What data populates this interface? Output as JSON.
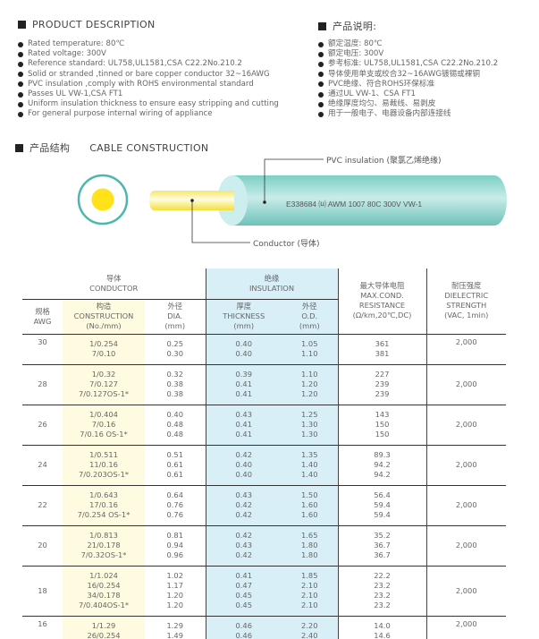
{
  "product_description": {
    "title": "PRODUCT DESCRIPTION",
    "items": [
      "Rated temperature: 80℃",
      "Rated voltage: 300V",
      "Reference standard: UL758,UL1581,CSA C22.2No.210.2",
      "Solid or stranded ,tinned or bare copper conductor 32~16AWG",
      "PVC insulation ,comply with ROHS environmental standard",
      "Passes UL VW-1,CSA FT1",
      "Uniform insulation thickness to ensure easy stripping and cutting",
      "For general purpose internal wiring of appliance"
    ]
  },
  "product_description_cn": {
    "title": "产品说明:",
    "items": [
      "额定温度: 80℃",
      "额定电压: 300V",
      "参考标准: UL758,UL1581,CSA C22.2No.210.2",
      "导体使用单支或绞合32~16AWG镀锡或裸铜",
      "PVC绝缘、符合ROHS环保标准",
      "通过UL VW-1、CSA FT1",
      "绝缘厚度均匀、易裁线、易剥皮",
      "用于一般电子、电器设备内部连接线"
    ]
  },
  "construction": {
    "title_cn": "产品结构",
    "title_en": "CABLE CONSTRUCTION",
    "pvc_label": "PVC insulation (聚氯乙烯绝缘)",
    "conductor_label": "Conductor (导体)",
    "cable_marking": "E338684 ⒰ AWM 1007 80C 300V VW-1",
    "colors": {
      "insulation": "#8fd3cc",
      "conductor": "#f5e23a"
    }
  },
  "table": {
    "group_conductor": [
      "导体",
      "CONDUCTOR"
    ],
    "group_insulation": [
      "绝缘",
      "INSULATION"
    ],
    "headers": {
      "awg": [
        "规格",
        "AWG"
      ],
      "construction": [
        "构造",
        "CONSTRUCTION",
        "(No./mm)"
      ],
      "dia": [
        "外径",
        "DIA.",
        "(mm)"
      ],
      "thickness": [
        "厚度",
        "THICKNESS",
        "(mm)"
      ],
      "od": [
        "外径",
        "O.D.",
        "(mm)"
      ],
      "resistance": [
        "最大导体电阻",
        "MAX.COND.",
        "RESISTANCE",
        "(Ω/km,20℃,DC)"
      ],
      "dielectric": [
        "耐压强度",
        "DIELECTRIC",
        "STRENGTH",
        "(VAC, 1min)"
      ]
    },
    "rows": [
      {
        "awg": "30",
        "construction": [
          "1/0.254",
          "7/0.10"
        ],
        "dia": [
          "0.25",
          "0.30"
        ],
        "thickness": [
          "0.40",
          "0.40"
        ],
        "od": [
          "1.05",
          "1.10"
        ],
        "resistance": [
          "361",
          "381"
        ],
        "dielectric": "2,000"
      },
      {
        "awg": "28",
        "construction": [
          "1/0.32",
          "7/0.127",
          "7/0.127OS-1*"
        ],
        "dia": [
          "0.32",
          "0.38",
          "0.38"
        ],
        "thickness": [
          "0.39",
          "0.41",
          "0.41"
        ],
        "od": [
          "1.10",
          "1.20",
          "1.20"
        ],
        "resistance": [
          "227",
          "239",
          "239"
        ],
        "dielectric": "2,000"
      },
      {
        "awg": "26",
        "construction": [
          "1/0.404",
          "7/0.16",
          "7/0.16 OS-1*"
        ],
        "dia": [
          "0.40",
          "0.48",
          "0.48"
        ],
        "thickness": [
          "0.43",
          "0.41",
          "0.41"
        ],
        "od": [
          "1.25",
          "1.30",
          "1.30"
        ],
        "resistance": [
          "143",
          "150",
          "150"
        ],
        "dielectric": "2,000"
      },
      {
        "awg": "24",
        "construction": [
          "1/0.511",
          "11/0.16",
          "7/0.203OS-1*"
        ],
        "dia": [
          "0.51",
          "0.61",
          "0.61"
        ],
        "thickness": [
          "0.42",
          "0.40",
          "0.40"
        ],
        "od": [
          "1.35",
          "1.40",
          "1.40"
        ],
        "resistance": [
          "89.3",
          "94.2",
          "94.2"
        ],
        "dielectric": "2,000"
      },
      {
        "awg": "22",
        "construction": [
          "1/0.643",
          "17/0.16",
          "7/0.254 OS-1*"
        ],
        "dia": [
          "0.64",
          "0.76",
          "0.76"
        ],
        "thickness": [
          "0.43",
          "0.42",
          "0.42"
        ],
        "od": [
          "1.50",
          "1.60",
          "1.60"
        ],
        "resistance": [
          "56.4",
          "59.4",
          "59.4"
        ],
        "dielectric": "2,000"
      },
      {
        "awg": "20",
        "construction": [
          "1/0.813",
          "21/0.178",
          "7/0.32OS-1*"
        ],
        "dia": [
          "0.81",
          "0.94",
          "0.96"
        ],
        "thickness": [
          "0.42",
          "0.43",
          "0.42"
        ],
        "od": [
          "1.65",
          "1.80",
          "1.80"
        ],
        "resistance": [
          "35.2",
          "36.7",
          "36.7"
        ],
        "dielectric": "2,000"
      },
      {
        "awg": "18",
        "construction": [
          "1/1.024",
          "16/0.254",
          "34/0.178",
          "7/0.404OS-1*"
        ],
        "dia": [
          "1.02",
          "1.17",
          "1.20",
          "1.20"
        ],
        "thickness": [
          "0.41",
          "0.47",
          "0.45",
          "0.45"
        ],
        "od": [
          "1.85",
          "2.10",
          "2.10",
          "2.10"
        ],
        "resistance": [
          "22.2",
          "23.2",
          "23.2",
          "23.2"
        ],
        "dielectric": "2,000"
      },
      {
        "awg": "16",
        "construction": [
          "1/1.29",
          "26/0.254"
        ],
        "dia": [
          "1.29",
          "1.49"
        ],
        "thickness": [
          "0.46",
          "0.46"
        ],
        "od": [
          "2.20",
          "2.40"
        ],
        "resistance": [
          "14.0",
          "14.6"
        ],
        "dielectric": "2,000"
      }
    ]
  }
}
